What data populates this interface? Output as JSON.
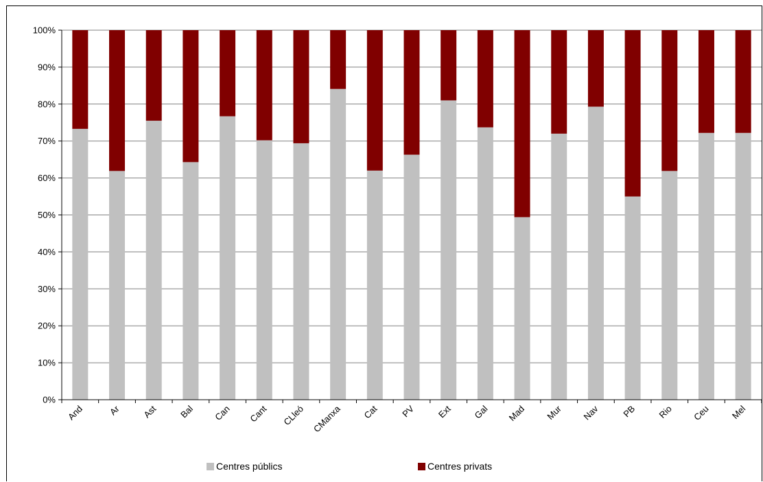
{
  "chart_data": {
    "type": "bar",
    "stacked": true,
    "percent": true,
    "categories": [
      "And",
      "Ar",
      "Ast",
      "Bal",
      "Can",
      "Cant",
      "CLleó",
      "CManxa",
      "Cat",
      "PV",
      "Ext",
      "Gal",
      "Mad",
      "Mur",
      "Nav",
      "PB",
      "Rio",
      "Ceu",
      "Mel"
    ],
    "series": [
      {
        "name": "Centres públics",
        "color": "#C0C0C0",
        "values": [
          73.3,
          61.9,
          75.5,
          64.3,
          76.7,
          70.2,
          69.4,
          84.1,
          62.0,
          66.3,
          81.0,
          73.7,
          49.4,
          72.0,
          79.3,
          55.0,
          61.9,
          72.2,
          72.2
        ]
      },
      {
        "name": "Centres privats",
        "color": "#800000",
        "values": [
          26.7,
          38.1,
          24.5,
          35.7,
          23.3,
          29.8,
          30.6,
          15.9,
          38.0,
          33.7,
          19.0,
          26.3,
          50.6,
          28.0,
          20.7,
          45.0,
          38.1,
          27.8,
          27.8
        ]
      }
    ],
    "ylim": [
      0,
      100
    ],
    "yticks": [
      "0%",
      "10%",
      "20%",
      "30%",
      "40%",
      "50%",
      "60%",
      "70%",
      "80%",
      "90%",
      "100%"
    ],
    "grid": true,
    "legend_position": "bottom"
  }
}
